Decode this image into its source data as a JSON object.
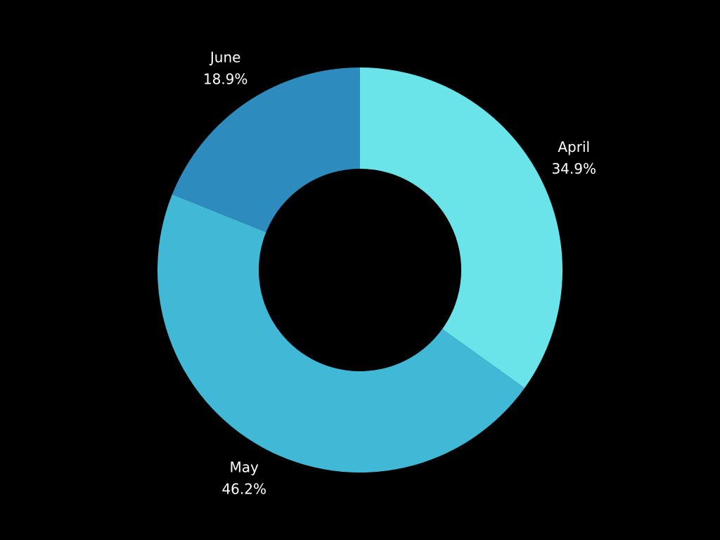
{
  "chart_data": {
    "type": "pie",
    "donut": true,
    "title": "",
    "categories": [
      "April",
      "May",
      "June"
    ],
    "values": [
      34.9,
      46.2,
      18.9
    ],
    "value_labels": [
      "34.9%",
      "46.2%",
      "18.9%"
    ],
    "colors": [
      "#6ae4e9",
      "#42b8d7",
      "#2e8bbd"
    ],
    "start_angle_deg": 0,
    "direction": "clockwise",
    "legend": "none",
    "background": "#000000"
  }
}
